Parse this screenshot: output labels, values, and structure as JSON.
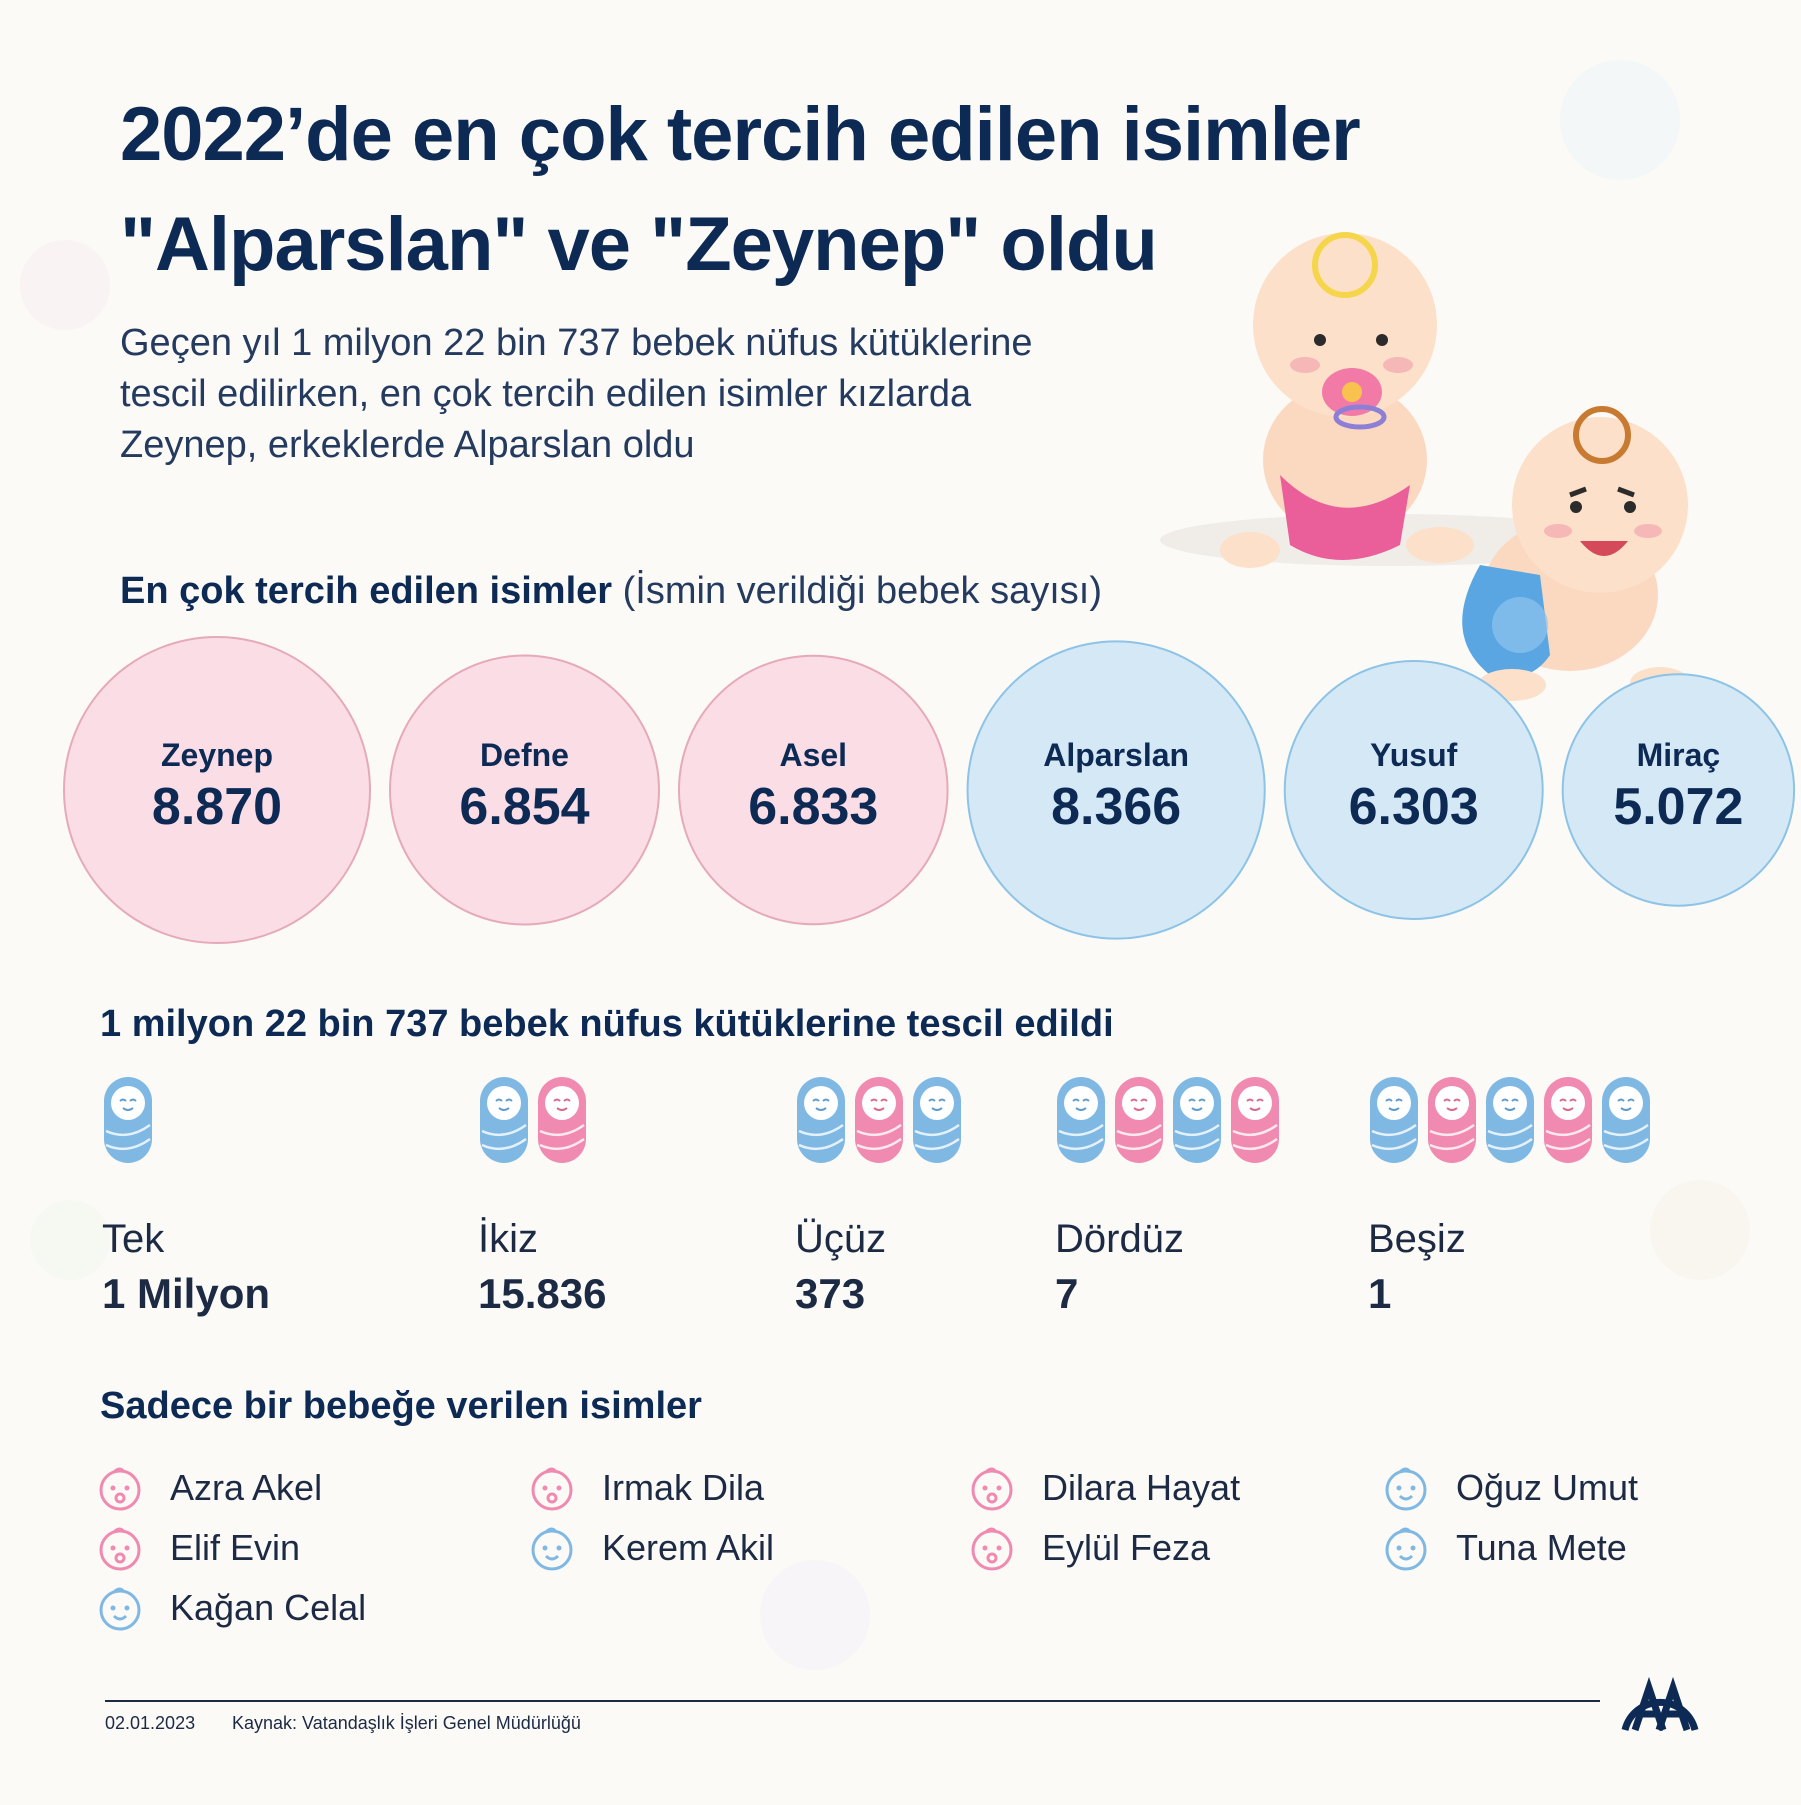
{
  "title": {
    "line1": "2022’de en çok tercih edilen isimler",
    "line2": "\"Alparslan\" ve \"Zeynep\" oldu"
  },
  "intro": {
    "line1": "Geçen yıl 1 milyon 22 bin 737 bebek nüfus kütüklerine",
    "line2": "tescil edilirken, en çok tercih edilen isimler kızlarda",
    "line3": "Zeynep, erkeklerde Alparslan oldu"
  },
  "section1": {
    "title": "En çok tercih edilen isimler",
    "subtitle": "(İsmin verildiği bebek sayısı)"
  },
  "chart_data": {
    "type": "bubble",
    "title": "En çok tercih edilen isimler",
    "subtitle": "(İsmin verildiği bebek sayısı)",
    "categories": [
      "Zeynep",
      "Defne",
      "Asel",
      "Alparslan",
      "Yusuf",
      "Miraç"
    ],
    "values": [
      8870,
      6854,
      6833,
      8366,
      6303,
      5072
    ],
    "value_labels": [
      "8.870",
      "6.854",
      "6.833",
      "8.366",
      "6.303",
      "5.072"
    ],
    "groups": [
      "girl",
      "girl",
      "girl",
      "boy",
      "boy",
      "boy"
    ],
    "colors": {
      "girl_fill": "#fbdde6",
      "girl_stroke": "#e6a9b9",
      "boy_fill": "#d4e8f6",
      "boy_stroke": "#8dc3e6"
    }
  },
  "section2": {
    "title": "1 milyon 22 bin 737 bebek nüfus kütüklerine tescil edildi"
  },
  "births": [
    {
      "label": "Tek",
      "value": "1 Milyon",
      "icons": [
        "boy"
      ]
    },
    {
      "label": "İkiz",
      "value": "15.836",
      "icons": [
        "boy",
        "girl"
      ]
    },
    {
      "label": "Üçüz",
      "value": "373",
      "icons": [
        "boy",
        "girl",
        "boy"
      ]
    },
    {
      "label": "Dördüz",
      "value": "7",
      "icons": [
        "boy",
        "girl",
        "boy",
        "girl"
      ]
    },
    {
      "label": "Beşiz",
      "value": "1",
      "icons": [
        "boy",
        "girl",
        "boy",
        "girl",
        "boy"
      ]
    }
  ],
  "section3": {
    "title": "Sadece bir bebeğe verilen isimler"
  },
  "unique_names": [
    {
      "name": "Azra Akel",
      "gender": "girl"
    },
    {
      "name": "Elif Evin",
      "gender": "girl"
    },
    {
      "name": "Kağan Celal",
      "gender": "boy"
    },
    {
      "name": "Irmak Dila",
      "gender": "girl"
    },
    {
      "name": "Kerem Akil",
      "gender": "boy"
    },
    {
      "name": "Dilara Hayat",
      "gender": "girl"
    },
    {
      "name": "Eylül Feza",
      "gender": "girl"
    },
    {
      "name": "Oğuz Umut",
      "gender": "boy"
    },
    {
      "name": "Tuna Mete",
      "gender": "boy"
    }
  ],
  "footer": {
    "date": "02.01.2023",
    "source": "Kaynak: Vatandaşlık İşleri Genel Müdürlüğü",
    "logo": "AA"
  },
  "colors": {
    "title": "#0d2a55",
    "boy": "#7fb8e3",
    "girl": "#f08ab0"
  },
  "icons": {
    "baby": "swaddled-baby-icon",
    "girl_face": "girl-face-icon",
    "boy_face": "boy-face-icon",
    "logo": "aa-logo-icon"
  }
}
